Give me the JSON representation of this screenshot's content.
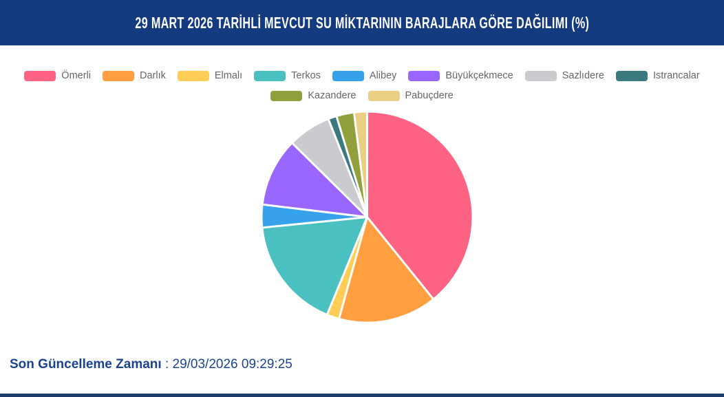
{
  "header": {
    "title": "29 MART 2026 TARİHLİ MEVCUT SU MİKTARININ BARAJLARA GÖRE DAĞILIMI (%)"
  },
  "colors": {
    "header_bar": "#143A80",
    "footer_bar": "#1C3B6D",
    "update_text": "#1B4390",
    "legend_text": "#666666",
    "slice_border": "#FFFFFF"
  },
  "chart_data": {
    "type": "pie",
    "title": "29 MART 2026 TARİHLİ MEVCUT SU MİKTARININ BARAJLARA GÖRE DAĞILIMI (%)",
    "unit": "%",
    "start_angle_deg": 0,
    "direction": "clockwise",
    "legend_position": "top",
    "data_labels_visible": false,
    "slices": [
      {
        "label": "Ömerli",
        "value": 39.2,
        "color": "#FF6384"
      },
      {
        "label": "Darlık",
        "value": 15.1,
        "color": "#FF9F40"
      },
      {
        "label": "Elmalı",
        "value": 1.9,
        "color": "#FFCD56"
      },
      {
        "label": "Terkos",
        "value": 17.2,
        "color": "#4BC0C0"
      },
      {
        "label": "Alibey",
        "value": 3.5,
        "color": "#36A2EB"
      },
      {
        "label": "Büyükçekmece",
        "value": 10.5,
        "color": "#9966FF"
      },
      {
        "label": "Sazlıdere",
        "value": 6.6,
        "color": "#C9CBCF"
      },
      {
        "label": "Istrancalar",
        "value": 1.3,
        "color": "#3A7A7E"
      },
      {
        "label": "Kazandere",
        "value": 2.7,
        "color": "#91A03C"
      },
      {
        "label": "Pabuçdere",
        "value": 2.0,
        "color": "#E9CE83"
      }
    ]
  },
  "footer": {
    "last_update_label": "Son Güncelleme Zamanı",
    "separator": " : ",
    "last_update_value": "29/03/2026 09:29:25"
  }
}
